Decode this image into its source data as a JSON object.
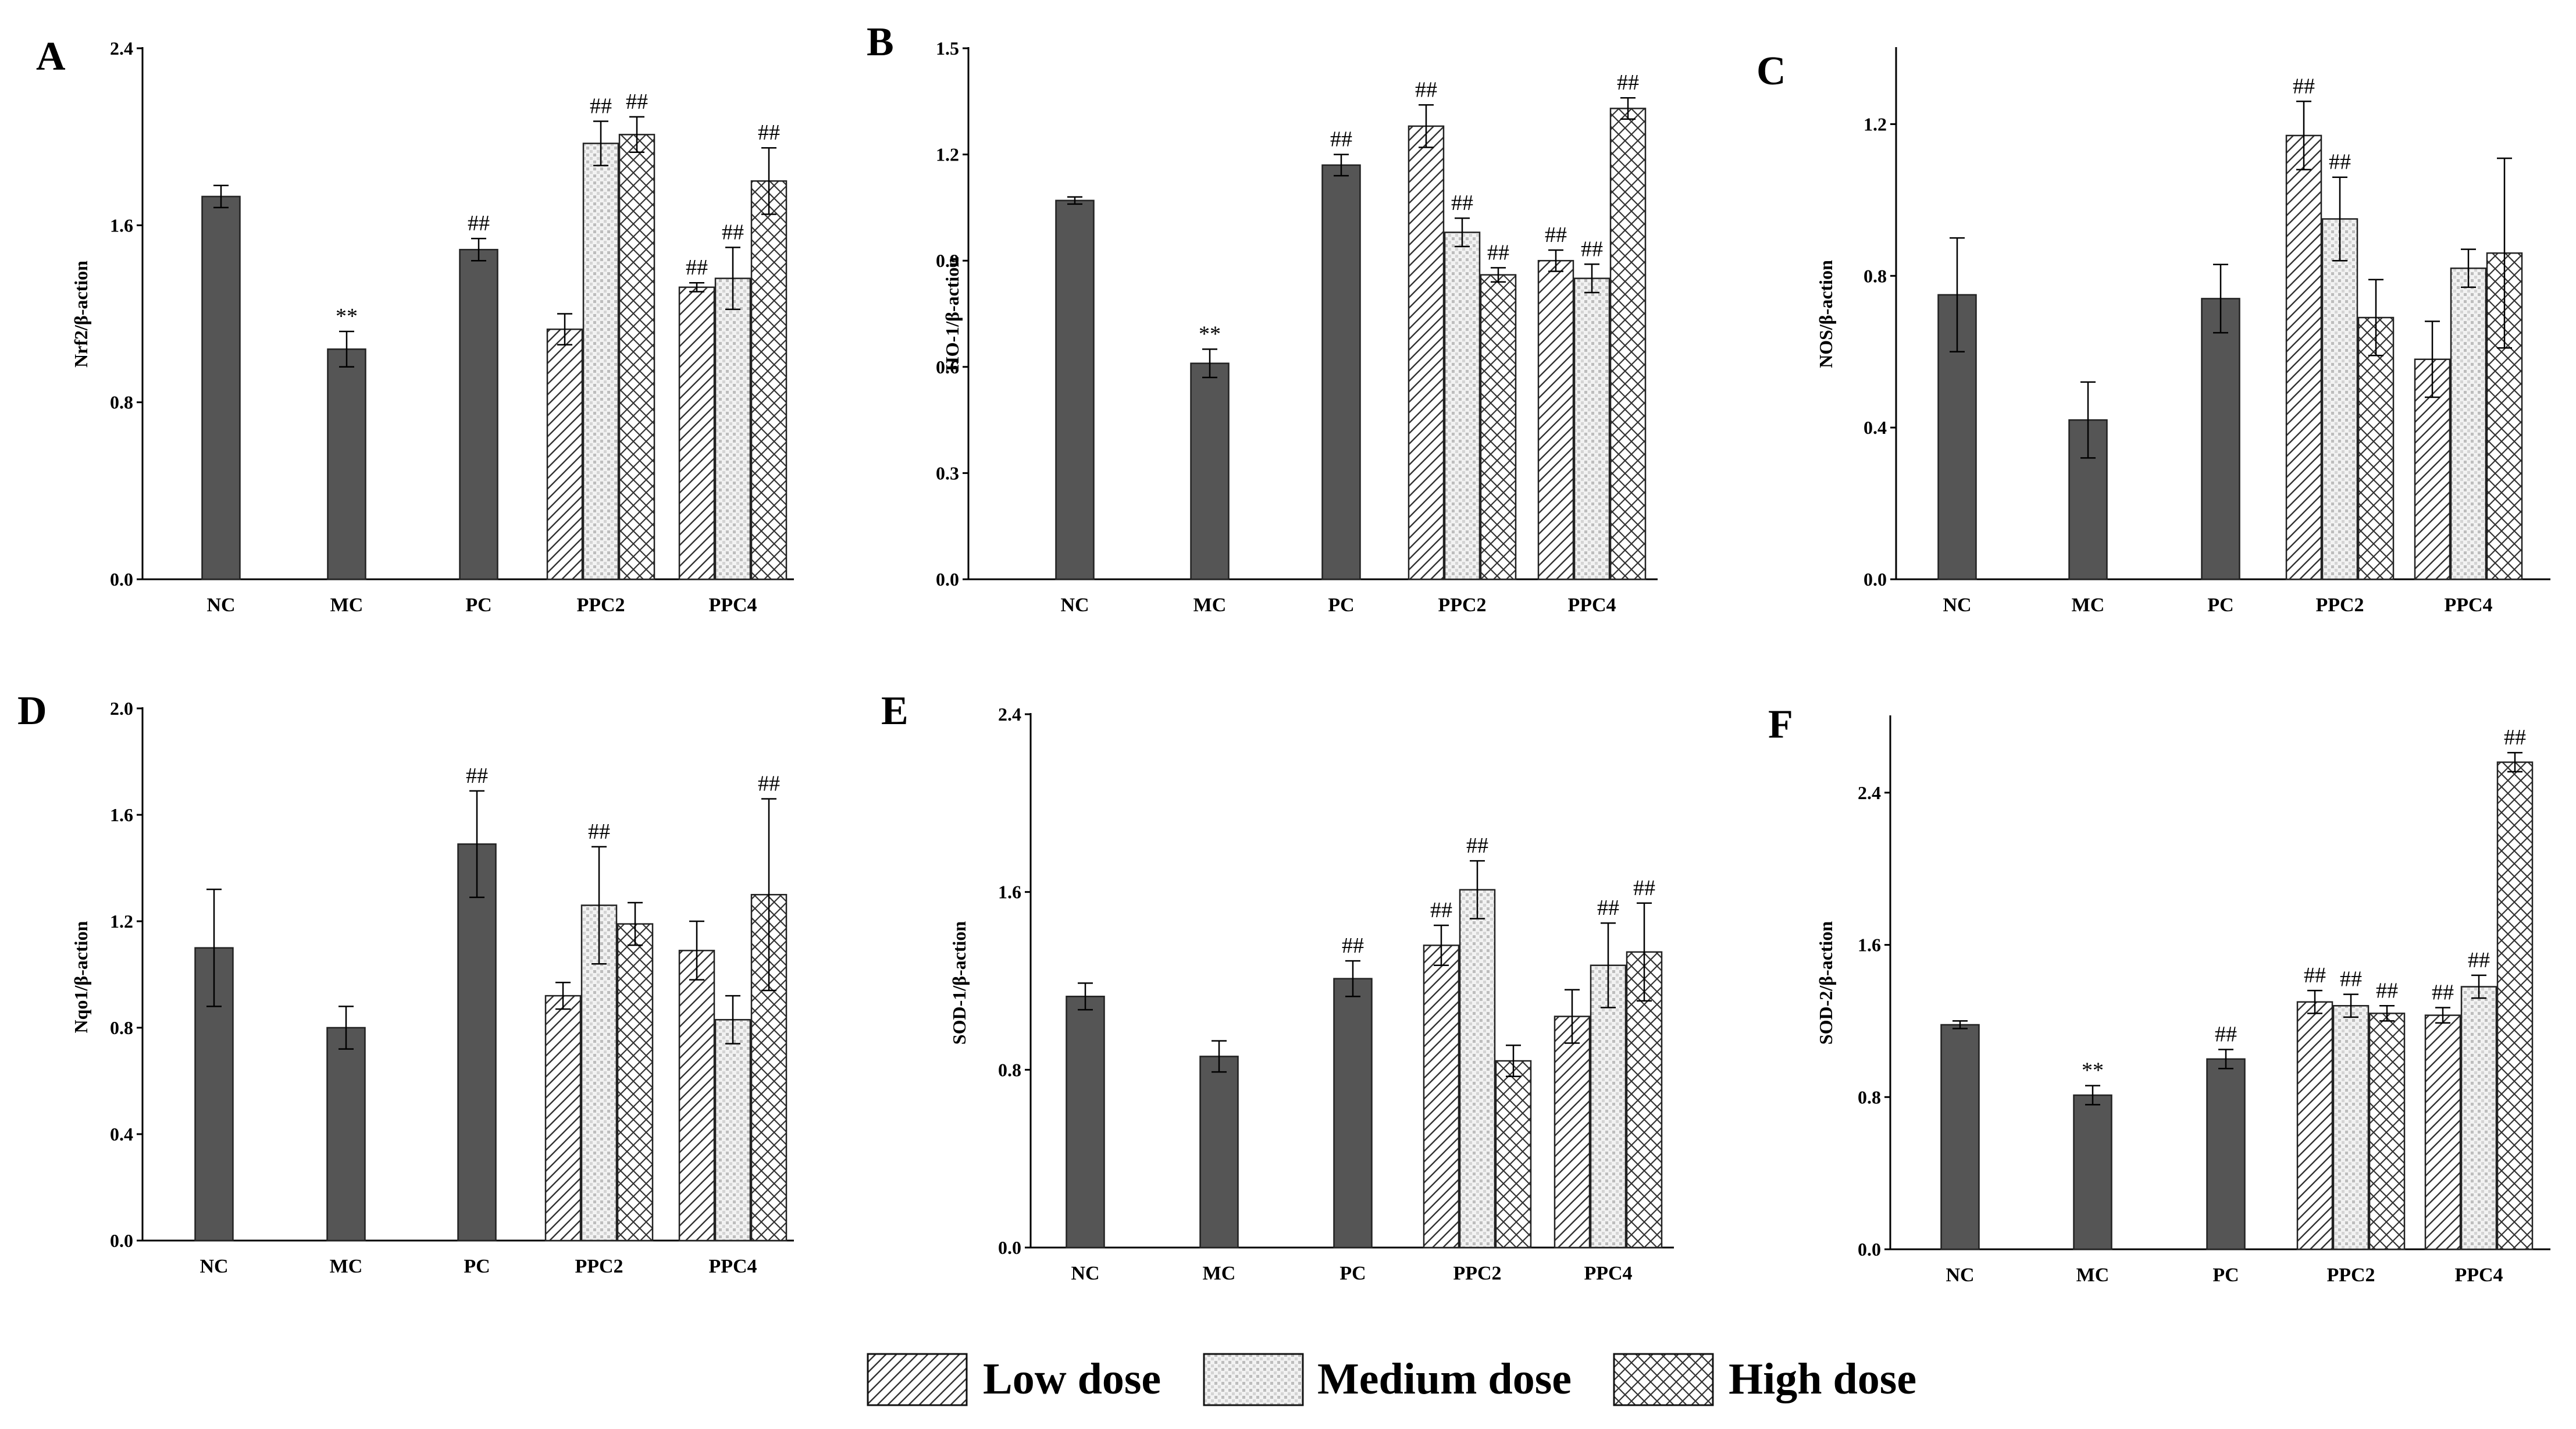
{
  "colors": {
    "solid_bar": "#555555",
    "axis": "#000000",
    "background": "#ffffff"
  },
  "legend": [
    {
      "key": "low",
      "label": "Low dose",
      "pattern": "diagonal-hatch"
    },
    {
      "key": "med",
      "label": "Medium dose",
      "pattern": "dotted-grid"
    },
    {
      "key": "high",
      "label": "High dose",
      "pattern": "cross-hatch"
    }
  ],
  "chart_data": [
    {
      "type": "bar",
      "panel": "A",
      "ylabel": "Nrf2/β-action",
      "ylim": [
        0,
        2.4
      ],
      "yticks": [
        "0.0",
        "0.8",
        "1.6",
        "2.4"
      ],
      "categories": [
        "NC",
        "MC",
        "PC",
        "PPC2",
        "PPC4"
      ],
      "solid": [
        {
          "group": "NC",
          "value": 1.73,
          "err": 0.05,
          "sig": ""
        },
        {
          "group": "MC",
          "value": 1.04,
          "err": 0.08,
          "sig": "**"
        },
        {
          "group": "PC",
          "value": 1.49,
          "err": 0.05,
          "sig": "##"
        }
      ],
      "dose": [
        {
          "group": "PPC2",
          "series": "low",
          "value": 1.13,
          "err": 0.07,
          "sig": ""
        },
        {
          "group": "PPC2",
          "series": "med",
          "value": 1.97,
          "err": 0.1,
          "sig": "##"
        },
        {
          "group": "PPC2",
          "series": "high",
          "value": 2.01,
          "err": 0.08,
          "sig": "##"
        },
        {
          "group": "PPC4",
          "series": "low",
          "value": 1.32,
          "err": 0.02,
          "sig": "##"
        },
        {
          "group": "PPC4",
          "series": "med",
          "value": 1.36,
          "err": 0.14,
          "sig": "##"
        },
        {
          "group": "PPC4",
          "series": "high",
          "value": 1.8,
          "err": 0.15,
          "sig": "##"
        }
      ]
    },
    {
      "type": "bar",
      "panel": "B",
      "ylabel": "HO-1/β-action",
      "ylim": [
        0,
        1.5
      ],
      "yticks": [
        "0.0",
        "0.3",
        "0.6",
        "0.9",
        "1.2",
        "1.5"
      ],
      "categories": [
        "NC",
        "MC",
        "PC",
        "PPC2",
        "PPC4"
      ],
      "solid": [
        {
          "group": "NC",
          "value": 1.07,
          "err": 0.01,
          "sig": ""
        },
        {
          "group": "MC",
          "value": 0.61,
          "err": 0.04,
          "sig": "**"
        },
        {
          "group": "PC",
          "value": 1.17,
          "err": 0.03,
          "sig": "##"
        }
      ],
      "dose": [
        {
          "group": "PPC2",
          "series": "low",
          "value": 1.28,
          "err": 0.06,
          "sig": "##"
        },
        {
          "group": "PPC2",
          "series": "med",
          "value": 0.98,
          "err": 0.04,
          "sig": "##"
        },
        {
          "group": "PPC2",
          "series": "high",
          "value": 0.86,
          "err": 0.02,
          "sig": "##"
        },
        {
          "group": "PPC4",
          "series": "low",
          "value": 0.9,
          "err": 0.03,
          "sig": "##"
        },
        {
          "group": "PPC4",
          "series": "med",
          "value": 0.85,
          "err": 0.04,
          "sig": "##"
        },
        {
          "group": "PPC4",
          "series": "high",
          "value": 1.33,
          "err": 0.03,
          "sig": "##"
        }
      ]
    },
    {
      "type": "bar",
      "panel": "C",
      "ylabel": "NOS/β-action",
      "ylim": [
        0,
        1.4
      ],
      "yticks": [
        "0.0",
        "0.4",
        "0.8",
        "1.2"
      ],
      "categories": [
        "NC",
        "MC",
        "PC",
        "PPC2",
        "PPC4"
      ],
      "solid": [
        {
          "group": "NC",
          "value": 0.75,
          "err": 0.15,
          "sig": ""
        },
        {
          "group": "MC",
          "value": 0.42,
          "err": 0.1,
          "sig": ""
        },
        {
          "group": "PC",
          "value": 0.74,
          "err": 0.09,
          "sig": ""
        }
      ],
      "dose": [
        {
          "group": "PPC2",
          "series": "low",
          "value": 1.17,
          "err": 0.09,
          "sig": "##"
        },
        {
          "group": "PPC2",
          "series": "med",
          "value": 0.95,
          "err": 0.11,
          "sig": "##"
        },
        {
          "group": "PPC2",
          "series": "high",
          "value": 0.69,
          "err": 0.1,
          "sig": ""
        },
        {
          "group": "PPC4",
          "series": "low",
          "value": 0.58,
          "err": 0.1,
          "sig": ""
        },
        {
          "group": "PPC4",
          "series": "med",
          "value": 0.82,
          "err": 0.05,
          "sig": ""
        },
        {
          "group": "PPC4",
          "series": "high",
          "value": 0.86,
          "err": 0.25,
          "sig": ""
        }
      ]
    },
    {
      "type": "bar",
      "panel": "D",
      "ylabel": "Nqo1/β-action",
      "ylim": [
        0,
        2.0
      ],
      "yticks": [
        "0.0",
        "0.4",
        "0.8",
        "1.2",
        "1.6",
        "2.0"
      ],
      "categories": [
        "NC",
        "MC",
        "PC",
        "PPC2",
        "PPC4"
      ],
      "solid": [
        {
          "group": "NC",
          "value": 1.1,
          "err": 0.22,
          "sig": ""
        },
        {
          "group": "MC",
          "value": 0.8,
          "err": 0.08,
          "sig": ""
        },
        {
          "group": "PC",
          "value": 1.49,
          "err": 0.2,
          "sig": "##"
        }
      ],
      "dose": [
        {
          "group": "PPC2",
          "series": "low",
          "value": 0.92,
          "err": 0.05,
          "sig": ""
        },
        {
          "group": "PPC2",
          "series": "med",
          "value": 1.26,
          "err": 0.22,
          "sig": "##"
        },
        {
          "group": "PPC2",
          "series": "high",
          "value": 1.19,
          "err": 0.08,
          "sig": ""
        },
        {
          "group": "PPC4",
          "series": "low",
          "value": 1.09,
          "err": 0.11,
          "sig": ""
        },
        {
          "group": "PPC4",
          "series": "med",
          "value": 0.83,
          "err": 0.09,
          "sig": ""
        },
        {
          "group": "PPC4",
          "series": "high",
          "value": 1.3,
          "err": 0.36,
          "sig": "##"
        }
      ]
    },
    {
      "type": "bar",
      "panel": "E",
      "ylabel": "SOD-1/β-action",
      "ylim": [
        0,
        2.4
      ],
      "yticks": [
        "0.0",
        "0.8",
        "1.6",
        "2.4"
      ],
      "categories": [
        "NC",
        "MC",
        "PC",
        "PPC2",
        "PPC4"
      ],
      "solid": [
        {
          "group": "NC",
          "value": 1.13,
          "err": 0.06,
          "sig": ""
        },
        {
          "group": "MC",
          "value": 0.86,
          "err": 0.07,
          "sig": ""
        },
        {
          "group": "PC",
          "value": 1.21,
          "err": 0.08,
          "sig": "##"
        }
      ],
      "dose": [
        {
          "group": "PPC2",
          "series": "low",
          "value": 1.36,
          "err": 0.09,
          "sig": "##"
        },
        {
          "group": "PPC2",
          "series": "med",
          "value": 1.61,
          "err": 0.13,
          "sig": "##"
        },
        {
          "group": "PPC2",
          "series": "high",
          "value": 0.84,
          "err": 0.07,
          "sig": ""
        },
        {
          "group": "PPC4",
          "series": "low",
          "value": 1.04,
          "err": 0.12,
          "sig": ""
        },
        {
          "group": "PPC4",
          "series": "med",
          "value": 1.27,
          "err": 0.19,
          "sig": "##"
        },
        {
          "group": "PPC4",
          "series": "high",
          "value": 1.33,
          "err": 0.22,
          "sig": "##"
        }
      ]
    },
    {
      "type": "bar",
      "panel": "F",
      "ylabel": "SOD-2/β-action",
      "ylim": [
        0,
        2.8
      ],
      "yticks": [
        "0.0",
        "0.8",
        "1.6",
        "2.4"
      ],
      "categories": [
        "NC",
        "MC",
        "PC",
        "PPC2",
        "PPC4"
      ],
      "solid": [
        {
          "group": "NC",
          "value": 1.18,
          "err": 0.02,
          "sig": ""
        },
        {
          "group": "MC",
          "value": 0.81,
          "err": 0.05,
          "sig": "**"
        },
        {
          "group": "PC",
          "value": 1.0,
          "err": 0.05,
          "sig": "##"
        }
      ],
      "dose": [
        {
          "group": "PPC2",
          "series": "low",
          "value": 1.3,
          "err": 0.06,
          "sig": "##"
        },
        {
          "group": "PPC2",
          "series": "med",
          "value": 1.28,
          "err": 0.06,
          "sig": "##"
        },
        {
          "group": "PPC2",
          "series": "high",
          "value": 1.24,
          "err": 0.04,
          "sig": "##"
        },
        {
          "group": "PPC4",
          "series": "low",
          "value": 1.23,
          "err": 0.04,
          "sig": "##"
        },
        {
          "group": "PPC4",
          "series": "med",
          "value": 1.38,
          "err": 0.06,
          "sig": "##"
        },
        {
          "group": "PPC4",
          "series": "high",
          "value": 2.56,
          "err": 0.05,
          "sig": "##"
        }
      ]
    }
  ]
}
